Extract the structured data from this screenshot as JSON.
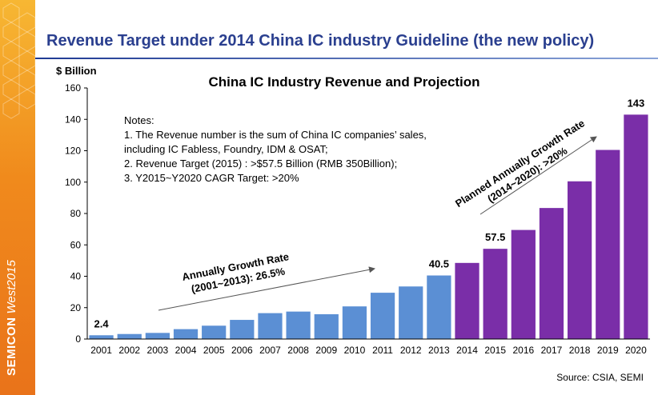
{
  "slide": {
    "title": "Revenue Target under 2014 China IC industry Guideline (the new policy)",
    "brand_line1": "SEMICON",
    "brand_line2": "West2015",
    "source": "Source: CSIA, SEMI"
  },
  "colors": {
    "historical_bar": "#5b8fd4",
    "projected_bar": "#7a2ea8",
    "title": "#2a3f8f",
    "side_band": "#f08a1c"
  },
  "chart_data": {
    "type": "bar",
    "title": "China IC Industry Revenue and Projection",
    "ylabel": "$ Billion",
    "xlabel": "",
    "ylim": [
      0,
      160
    ],
    "yticks": [
      0,
      20,
      40,
      60,
      80,
      100,
      120,
      140,
      160
    ],
    "grid": false,
    "categories": [
      "2001",
      "2002",
      "2003",
      "2004",
      "2005",
      "2006",
      "2007",
      "2008",
      "2009",
      "2010",
      "2011",
      "2012",
      "2013",
      "2014",
      "2015",
      "2016",
      "2017",
      "2018",
      "2019",
      "2020"
    ],
    "values": [
      2.4,
      3.2,
      3.9,
      6.3,
      8.5,
      12.2,
      16.5,
      17.5,
      15.8,
      20.8,
      29.5,
      33.5,
      40.5,
      48.5,
      57.5,
      69.5,
      83.5,
      100.5,
      120.5,
      143
    ],
    "groups": [
      {
        "name": "historical",
        "from": "2001",
        "to": "2013"
      },
      {
        "name": "projected",
        "from": "2014",
        "to": "2020"
      }
    ],
    "value_labels": [
      {
        "category": "2001",
        "text": "2.4"
      },
      {
        "category": "2013",
        "text": "40.5"
      },
      {
        "category": "2015",
        "text": "57.5"
      },
      {
        "category": "2020",
        "text": "143"
      }
    ],
    "notes": [
      "Notes:",
      "1. The Revenue number is the sum of China IC companies’ sales,",
      "including IC Fabless, Foundry, IDM & OSAT;",
      "2. Revenue Target (2015) :   >$57.5 Billion (RMB 350Billion);",
      "3. Y2015~Y2020 CAGR Target: >20%"
    ],
    "annotations": [
      {
        "id": "historical",
        "line1": "Annually Growth Rate",
        "line2": "(2001~2013): 26.5%"
      },
      {
        "id": "planned",
        "line1": "Planned Annually Growth Rate",
        "line2": "(2014~2020): >20%"
      }
    ]
  }
}
